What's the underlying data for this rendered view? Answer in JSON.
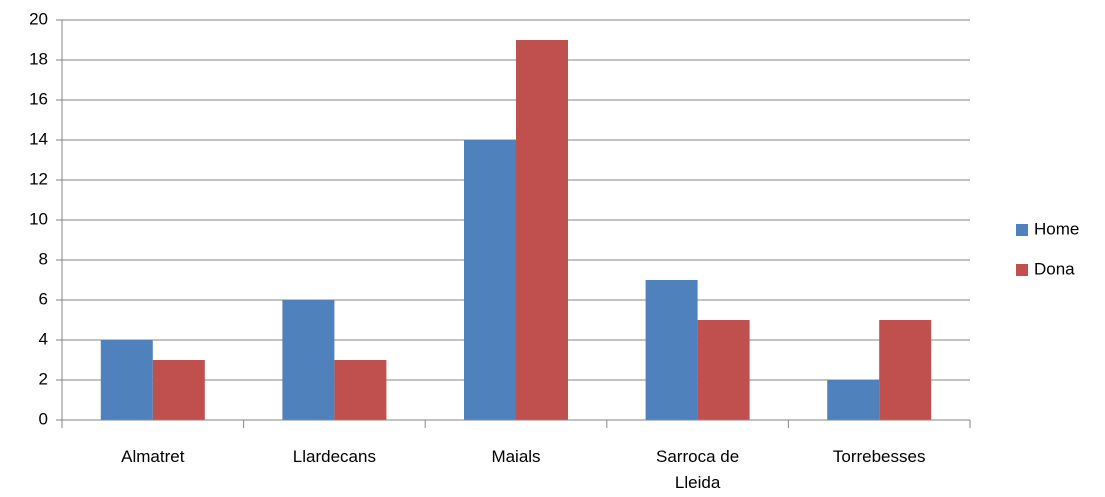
{
  "chart_data": {
    "type": "bar",
    "categories": [
      "Almatret",
      "Llardecans",
      "Maials",
      "Sarroca de Lleida",
      "Torrebesses"
    ],
    "series": [
      {
        "name": "Home",
        "color": "#4f81bd",
        "values": [
          4,
          6,
          14,
          7,
          2
        ]
      },
      {
        "name": "Dona",
        "color": "#c0504d",
        "values": [
          3,
          3,
          19,
          5,
          5
        ]
      }
    ],
    "ylim": [
      0,
      20
    ],
    "yticks": [
      0,
      2,
      4,
      6,
      8,
      10,
      12,
      14,
      16,
      18,
      20
    ],
    "grid": true,
    "legend": "right"
  }
}
